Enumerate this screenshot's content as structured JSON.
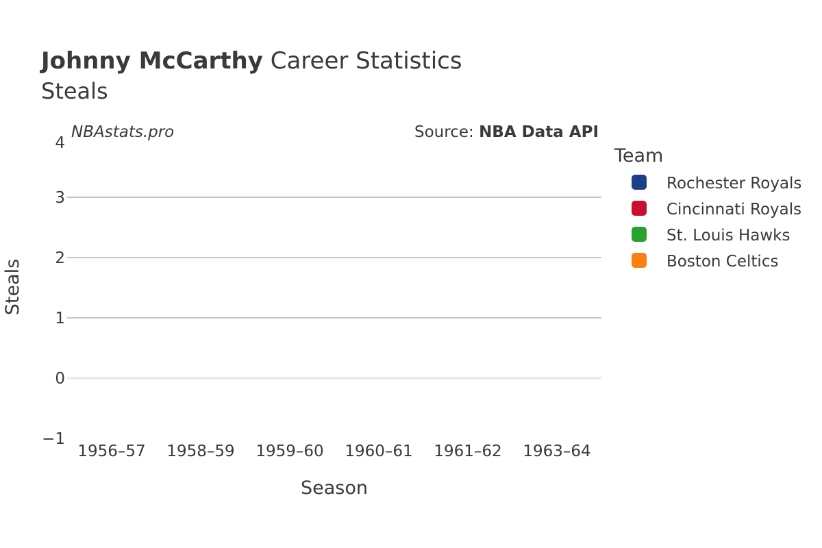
{
  "title": {
    "bold": "Johnny McCarthy",
    "rest": " Career Statistics"
  },
  "subtitle": "Steals",
  "watermark": "NBAstats.pro",
  "source": {
    "prefix": "Source: ",
    "name": "NBA Data API"
  },
  "legend_title": "Team",
  "chart_data": {
    "type": "bar",
    "categories": [
      "1956–57",
      "1958–59",
      "1959–60",
      "1960–61",
      "1961–62",
      "1963–64"
    ],
    "series": [
      {
        "name": "Rochester Royals",
        "color": "#1b408a",
        "values": [
          null,
          null,
          null,
          null,
          null,
          null
        ]
      },
      {
        "name": "Cincinnati Royals",
        "color": "#c8102e",
        "values": [
          null,
          null,
          null,
          null,
          null,
          null
        ]
      },
      {
        "name": "St. Louis Hawks",
        "color": "#29a12f",
        "values": [
          null,
          null,
          null,
          null,
          null,
          null
        ]
      },
      {
        "name": "Boston Celtics",
        "color": "#ff7f0e",
        "values": [
          null,
          null,
          null,
          null,
          null,
          null
        ]
      }
    ],
    "xlabel": "Season",
    "ylabel": "Steals",
    "ylim": [
      -1,
      4
    ],
    "yticks": [
      -1,
      0,
      1,
      2,
      3,
      4
    ],
    "yticklabels": [
      "−1",
      "0",
      "1",
      "2",
      "3",
      "4"
    ],
    "grid": true,
    "legend_position": "right"
  }
}
